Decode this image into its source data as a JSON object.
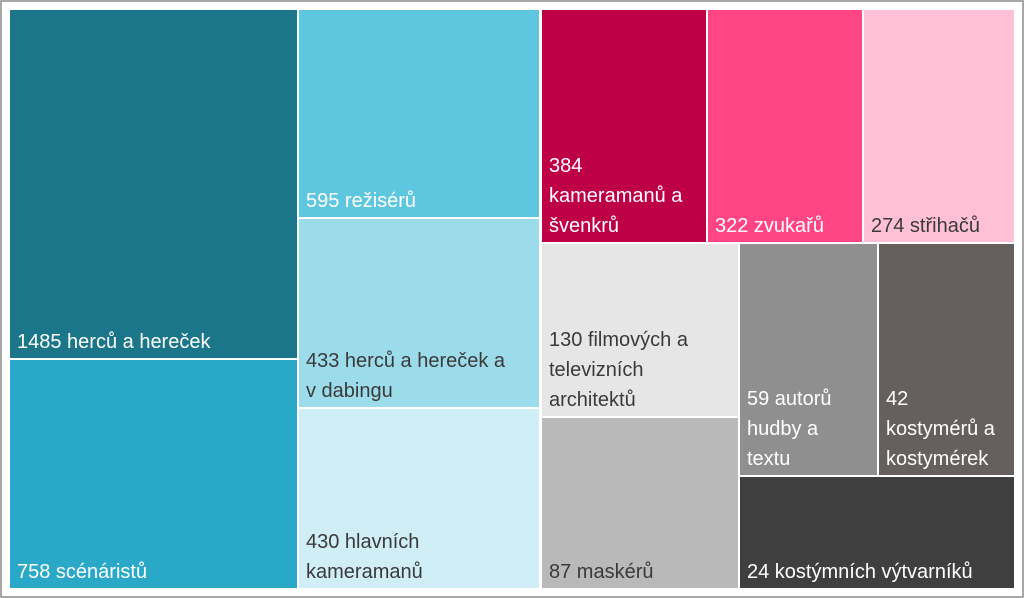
{
  "chart_data": {
    "type": "treemap",
    "title": "",
    "items": [
      {
        "label": "1485 herců a hereček",
        "value": 1485,
        "color": "#1b7689",
        "text_color": "#ffffff"
      },
      {
        "label": "758 scénáristů",
        "value": 758,
        "color": "#29a9c7",
        "text_color": "#ffffff"
      },
      {
        "label": "595 režisérů",
        "value": 595,
        "color": "#5fc6df",
        "text_color": "#ffffff"
      },
      {
        "label": "433 herců a hereček a v dabingu",
        "value": 433,
        "color": "#9cdbea",
        "text_color": "#3a3a3a"
      },
      {
        "label": "430 hlavních kameramanů",
        "value": 430,
        "color": "#d0eef5",
        "text_color": "#3a3a3a"
      },
      {
        "label": "384 kameramanů a švenkrů",
        "value": 384,
        "color": "#be0046",
        "text_color": "#ffffff"
      },
      {
        "label": "322 zvukařů",
        "value": 322,
        "color": "#ff4583",
        "text_color": "#ffffff"
      },
      {
        "label": "274 střihačů",
        "value": 274,
        "color": "#ffc0d5",
        "text_color": "#3a3a3a"
      },
      {
        "label": "130 filmových a televizních architektů",
        "value": 130,
        "color": "#e6e6e6",
        "text_color": "#3a3a3a"
      },
      {
        "label": "87 maskérů",
        "value": 87,
        "color": "#b9b9b9",
        "text_color": "#3a3a3a"
      },
      {
        "label": "59 autorů hudby a textu",
        "value": 59,
        "color": "#8f8f8f",
        "text_color": "#ffffff"
      },
      {
        "label": "42 kostymérů a kostymérek",
        "value": 42,
        "color": "#655f5e",
        "text_color": "#ffffff"
      },
      {
        "label": "24 kostýmních výtvarníků",
        "value": 24,
        "color": "#3f3f3f",
        "text_color": "#ffffff"
      }
    ]
  }
}
